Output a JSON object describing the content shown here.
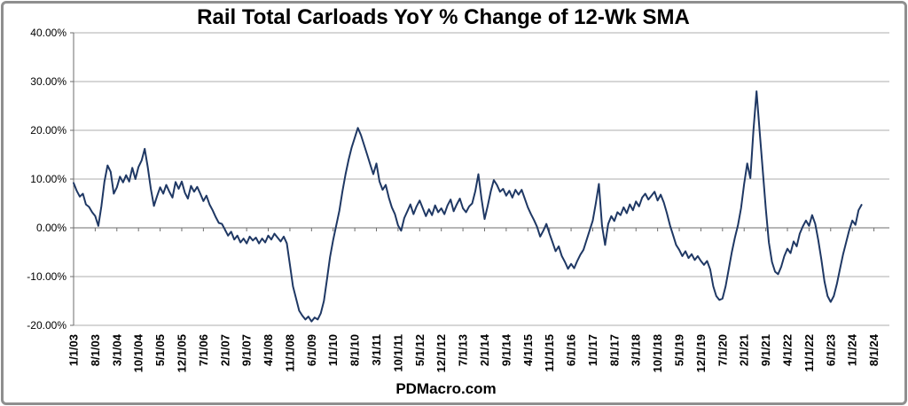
{
  "chart": {
    "title": "Rail Total Carloads YoY % Change of 12-Wk SMA",
    "watermark": "PDMacro.com"
  },
  "chart_data": {
    "type": "line",
    "title": "Rail Total Carloads YoY % Change of 12-Wk SMA",
    "grid": true,
    "legend": false,
    "colors": {
      "series_line": "#1f3864",
      "gridline": "#aeaeae",
      "axis": "#6e6e6e"
    },
    "y_axis": {
      "min": -20,
      "max": 40,
      "tick_step_pct": 10,
      "format": "percent",
      "ticks": [
        {
          "label": "40.00%",
          "value": 40
        },
        {
          "label": "30.00%",
          "value": 30
        },
        {
          "label": "20.00%",
          "value": 20
        },
        {
          "label": "10.00%",
          "value": 10
        },
        {
          "label": "0.00%",
          "value": 0
        },
        {
          "label": "-10.00%",
          "value": -10
        },
        {
          "label": "-20.00%",
          "value": -20
        }
      ]
    },
    "x_axis": {
      "tick_interval_months": 7,
      "axis_span_months": 264,
      "tick_labels": [
        "1/1/03",
        "8/1/03",
        "3/1/04",
        "10/1/04",
        "5/1/05",
        "12/1/05",
        "7/1/06",
        "2/1/07",
        "9/1/07",
        "4/1/08",
        "11/1/08",
        "6/1/09",
        "1/1/10",
        "8/1/10",
        "3/1/11",
        "10/1/11",
        "5/1/12",
        "12/1/12",
        "7/1/13",
        "2/1/14",
        "9/1/14",
        "4/1/15",
        "11/1/15",
        "6/1/16",
        "1/1/17",
        "8/1/17",
        "3/1/18",
        "10/1/18",
        "5/1/19",
        "12/1/19",
        "7/1/20",
        "2/1/21",
        "9/1/21",
        "4/1/22",
        "11/1/22",
        "6/1/23",
        "1/1/24",
        "8/1/24"
      ]
    },
    "series": [
      {
        "name": "Rail Total Carloads YoY % Change of 12-Wk SMA",
        "color": "#1f3864",
        "unit": "percent",
        "start": "1/1/03",
        "interval_months": 1,
        "sampling": "monthly approximation traced from weekly line",
        "values": [
          9.2,
          7.6,
          6.4,
          7.0,
          4.8,
          4.3,
          3.2,
          2.4,
          0.4,
          4.5,
          9.5,
          12.8,
          11.5,
          7.0,
          8.3,
          10.5,
          9.3,
          10.8,
          9.5,
          12.3,
          10.0,
          12.5,
          13.8,
          16.2,
          12.5,
          8.0,
          4.5,
          6.5,
          8.3,
          7.0,
          8.8,
          7.4,
          6.2,
          9.4,
          8.0,
          9.5,
          7.2,
          6.0,
          8.6,
          7.4,
          8.4,
          7.0,
          5.5,
          6.6,
          4.8,
          3.6,
          2.2,
          1.0,
          0.8,
          -0.4,
          -1.6,
          -0.8,
          -2.4,
          -1.6,
          -3.0,
          -2.2,
          -3.2,
          -1.8,
          -2.6,
          -2.0,
          -3.2,
          -2.2,
          -3.0,
          -1.6,
          -2.4,
          -1.2,
          -2.0,
          -2.8,
          -1.8,
          -3.2,
          -7.5,
          -12.0,
          -14.5,
          -17.0,
          -18.0,
          -18.8,
          -18.2,
          -19.2,
          -18.4,
          -18.8,
          -17.5,
          -15.0,
          -10.5,
          -6.0,
          -2.5,
          0.5,
          3.5,
          7.5,
          11.0,
          14.0,
          16.5,
          18.5,
          20.5,
          19.0,
          17.0,
          15.0,
          13.0,
          11.0,
          13.2,
          9.5,
          7.8,
          8.8,
          6.2,
          4.2,
          2.8,
          0.5,
          -0.6,
          2.0,
          3.4,
          4.8,
          2.8,
          4.4,
          5.6,
          4.0,
          2.4,
          3.8,
          2.6,
          4.6,
          3.2,
          4.0,
          2.8,
          4.6,
          5.8,
          3.4,
          4.8,
          6.0,
          4.0,
          3.2,
          4.4,
          5.0,
          7.5,
          11.0,
          6.0,
          1.8,
          4.5,
          7.5,
          9.8,
          8.8,
          7.4,
          8.0,
          6.6,
          7.6,
          6.2,
          7.8,
          6.8,
          7.8,
          6.0,
          4.2,
          2.8,
          1.6,
          0.2,
          -1.8,
          -0.6,
          0.8,
          -1.2,
          -3.0,
          -4.8,
          -3.8,
          -5.8,
          -7.0,
          -8.4,
          -7.4,
          -8.3,
          -6.8,
          -5.5,
          -4.5,
          -2.5,
          -0.5,
          1.5,
          5.0,
          9.0,
          0.5,
          -3.5,
          0.8,
          2.4,
          1.4,
          3.2,
          2.6,
          4.2,
          3.0,
          4.8,
          3.6,
          5.4,
          4.4,
          6.2,
          7.0,
          5.8,
          6.6,
          7.4,
          5.6,
          6.8,
          5.2,
          3.0,
          0.5,
          -1.5,
          -3.5,
          -4.5,
          -5.8,
          -4.8,
          -6.2,
          -5.4,
          -6.6,
          -5.8,
          -6.8,
          -7.6,
          -6.8,
          -8.5,
          -12.0,
          -14.0,
          -14.8,
          -14.5,
          -12.0,
          -8.5,
          -5.0,
          -2.0,
          0.5,
          4.0,
          9.0,
          13.2,
          10.2,
          20.0,
          28.0,
          20.0,
          12.0,
          4.0,
          -3.0,
          -7.0,
          -9.0,
          -9.5,
          -8.0,
          -5.8,
          -4.3,
          -5.2,
          -2.8,
          -3.8,
          -1.2,
          0.3,
          1.5,
          0.4,
          2.6,
          0.8,
          -2.5,
          -6.5,
          -11.0,
          -14.0,
          -15.2,
          -14.0,
          -11.5,
          -8.5,
          -5.5,
          -3.0,
          -0.5,
          1.5,
          0.6,
          3.6,
          4.7
        ]
      }
    ]
  }
}
